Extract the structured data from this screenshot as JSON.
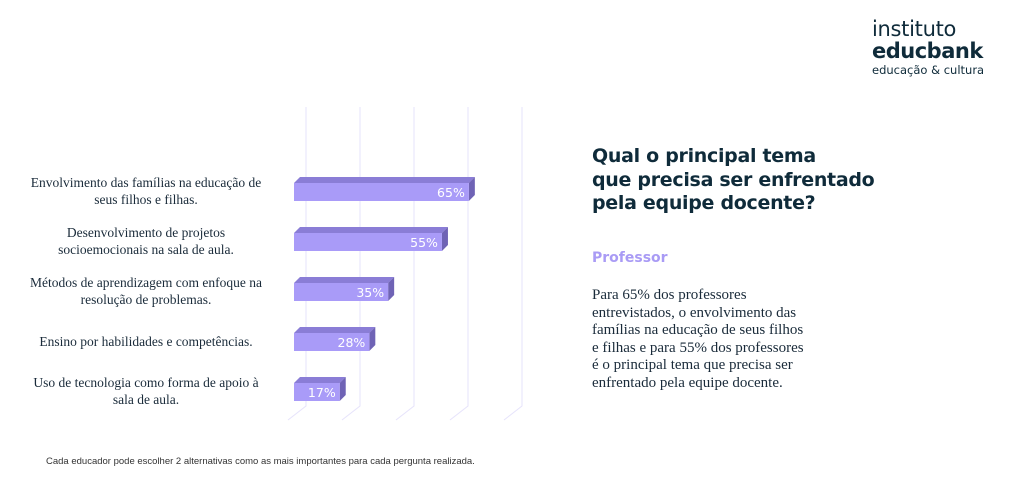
{
  "logo": {
    "line1": "instituto",
    "line2": "educbank",
    "line3": "educação & cultura"
  },
  "chart_data": {
    "type": "bar",
    "orientation": "horizontal",
    "categories": [
      "Envolvimento das famílias na educação de seus filhos e filhas.",
      "Desenvolvimento de projetos socioemocionais na sala de aula.",
      "Métodos de aprendizagem com enfoque na resolução de problemas.",
      "Ensino por habilidades e competências.",
      "Uso de tecnologia como forma de apoio à sala de aula."
    ],
    "label_lines": [
      [
        "Envolvimento das famílias na educação de",
        "seus filhos e filhas."
      ],
      [
        "Desenvolvimento de projetos",
        "socioemocionais na sala de aula."
      ],
      [
        "Métodos de aprendizagem com enfoque na",
        "resolução de problemas."
      ],
      [
        "Ensino por habilidades e competências."
      ],
      [
        "Uso de tecnologia como forma de apoio à",
        "sala de aula."
      ]
    ],
    "values": [
      65,
      55,
      35,
      28,
      17
    ],
    "data_labels": [
      "65%",
      "55%",
      "35%",
      "28%",
      "17%"
    ],
    "xlim": [
      0,
      85
    ],
    "grid": true,
    "colors": {
      "front": "#a99bf8",
      "top": "#8a7dd6",
      "side": "#6f63b5",
      "grid": "#e6e3fb"
    }
  },
  "question": [
    "Qual o principal tema",
    "que precisa ser enfrentado",
    "pela equipe docente?"
  ],
  "subtitle": "Professor",
  "paragraph": [
    "Para 65% dos professores",
    "entrevistados, o envolvimento das",
    "famílias na educação de seus filhos",
    "e filhas e para 55% dos professores",
    "é o principal tema que precisa ser",
    "enfrentado pela equipe docente."
  ],
  "footnote": "Cada educador pode  escolher 2 alternativas como as mais importantes para cada pergunta realizada."
}
